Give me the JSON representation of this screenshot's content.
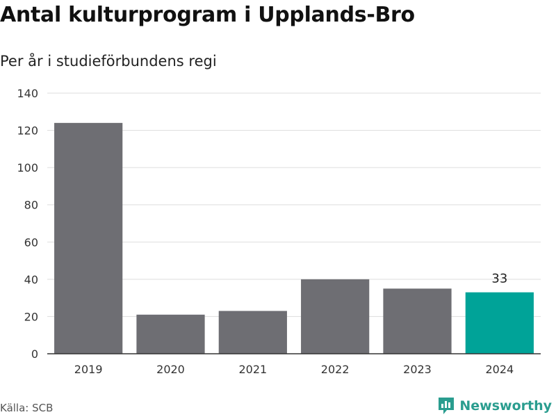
{
  "header": {
    "title": "Antal kulturprogram i Upplands-Bro",
    "subtitle": "Per år i studieförbundens regi"
  },
  "footer": {
    "source": "Källa: SCB",
    "brand": "Newsworthy",
    "brand_icon": "bar-chart-logo-icon"
  },
  "colors": {
    "bar": "#6e6e73",
    "highlight": "#00a398",
    "grid": "#dddddd",
    "axis": "#333333",
    "brand": "#2a9d8f"
  },
  "chart_data": {
    "type": "bar",
    "title": "Antal kulturprogram i Upplands-Bro",
    "subtitle": "Per år i studieförbundens regi",
    "categories": [
      "2019",
      "2020",
      "2021",
      "2022",
      "2023",
      "2024"
    ],
    "values": [
      124,
      21,
      23,
      40,
      35,
      33
    ],
    "highlight_index": 5,
    "data_labels": [
      {
        "index": 5,
        "text": "33"
      }
    ],
    "xlabel": "",
    "ylabel": "",
    "ylim": [
      0,
      140
    ],
    "yticks": [
      0,
      20,
      40,
      60,
      80,
      100,
      120,
      140
    ],
    "grid": true,
    "legend": "none"
  }
}
